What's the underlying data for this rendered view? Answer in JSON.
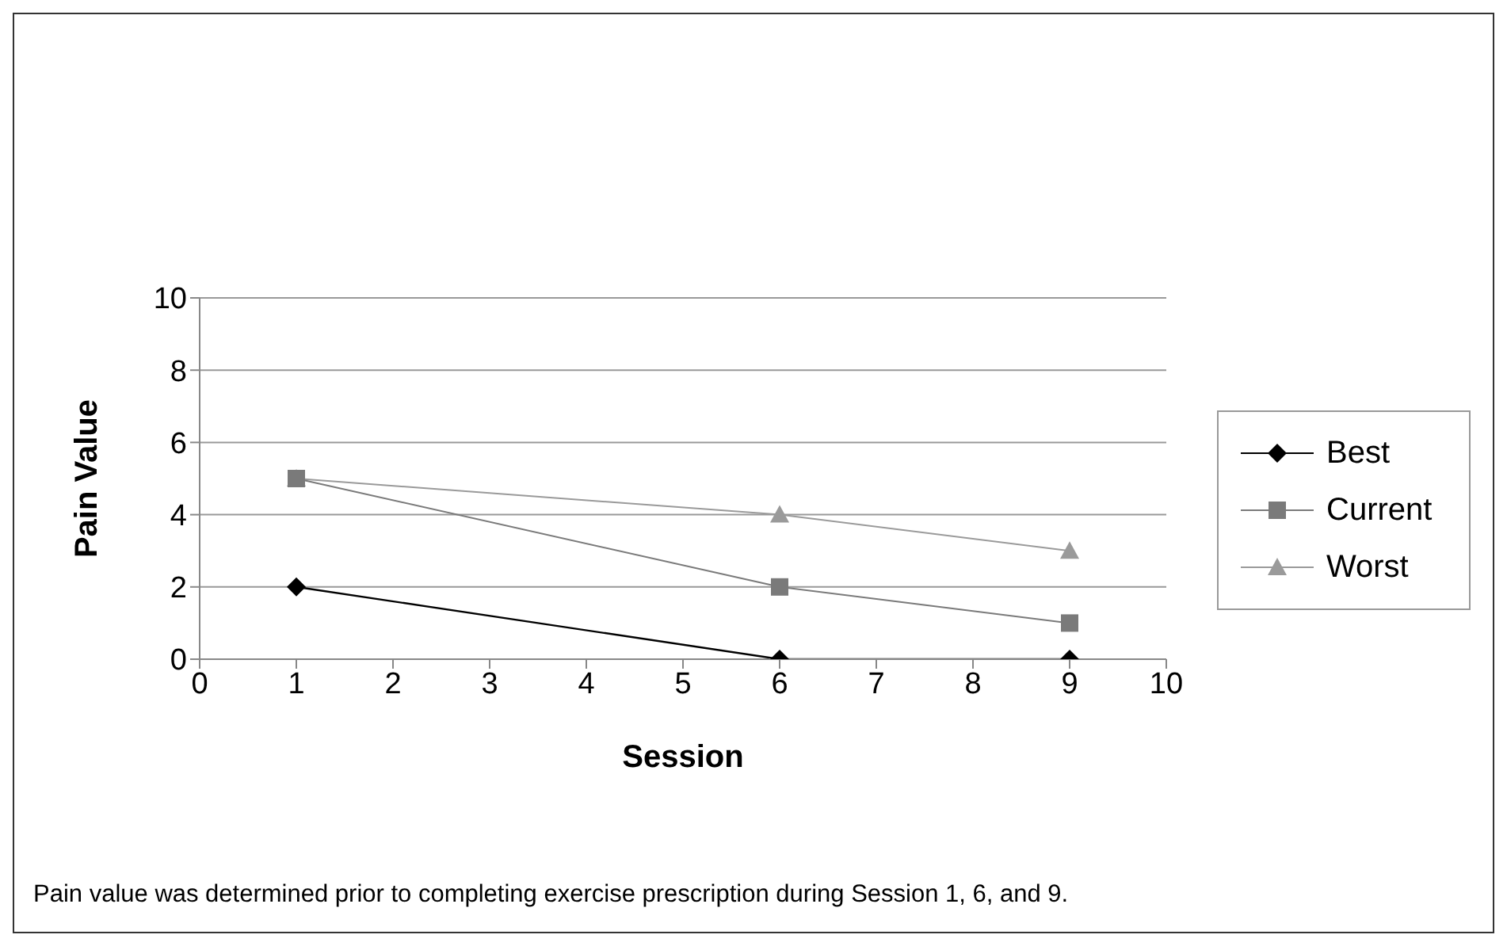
{
  "chart_data": {
    "type": "line",
    "xlabel": "Session",
    "ylabel": "Pain Value",
    "x": [
      1,
      6,
      9
    ],
    "series": [
      {
        "name": "Best",
        "color": "#000000",
        "marker": "diamond",
        "values": [
          2,
          0,
          0
        ]
      },
      {
        "name": "Current",
        "color": "#7a7a7a",
        "marker": "square",
        "values": [
          5,
          2,
          1
        ]
      },
      {
        "name": "Worst",
        "color": "#9a9a9a",
        "marker": "triangle",
        "values": [
          5,
          4,
          3
        ]
      }
    ],
    "xlim": [
      0,
      10
    ],
    "xticks": [
      0,
      1,
      2,
      3,
      4,
      5,
      6,
      7,
      8,
      9,
      10
    ],
    "ylim": [
      0,
      10
    ],
    "yticks": [
      0,
      2,
      4,
      6,
      8,
      10
    ],
    "grid": "y",
    "legend": "right",
    "annotations": [
      "Pain value was determined prior to completing exercise prescription during Session 1, 6, and 9."
    ]
  }
}
